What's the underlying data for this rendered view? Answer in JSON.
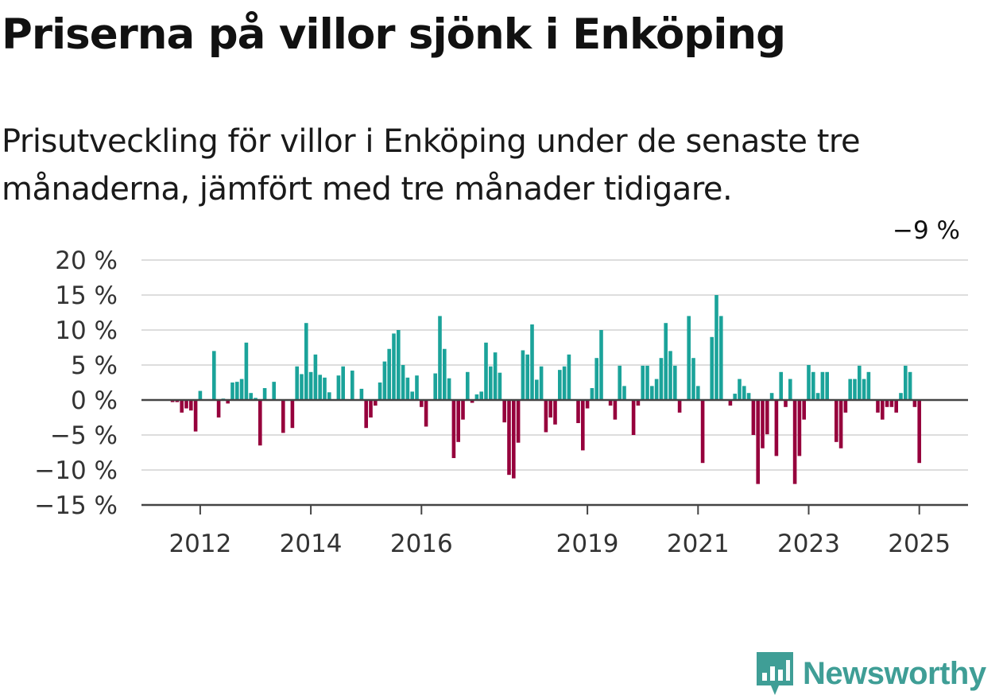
{
  "title": "Priserna på villor sjönk i Enköping",
  "subtitle": "Prisutveckling för villor i Enköping under de senaste tre månaderna, jämfört med tre månader tidigare.",
  "brand": {
    "name": "Newsworthy",
    "color": "#3f9e96",
    "icon": "newsworthy-chart-icon"
  },
  "colors": {
    "positive": "#1ba39a",
    "negative": "#96003c",
    "grid": "#dddddd",
    "axis": "#444444"
  },
  "chart_data": {
    "type": "bar",
    "ylim": [
      -15,
      20
    ],
    "yticks": [
      20,
      15,
      10,
      5,
      0,
      -5,
      -10,
      -15
    ],
    "ytick_labels": [
      "20 %",
      "15 %",
      "10 %",
      "5 %",
      "0 %",
      "−5 %",
      "−10 %",
      "−15 %"
    ],
    "x_start": "2011-01",
    "xticks": [
      {
        "label": "2012",
        "year": 2012
      },
      {
        "label": "2014",
        "year": 2014
      },
      {
        "label": "2016",
        "year": 2016
      },
      {
        "label": "2019",
        "year": 2019
      },
      {
        "label": "2021",
        "year": 2021
      },
      {
        "label": "2023",
        "year": 2023
      },
      {
        "label": "2025",
        "year": 2025
      }
    ],
    "values": [
      null,
      null,
      null,
      null,
      null,
      null,
      null,
      null,
      null,
      null,
      null,
      null,
      -0.3,
      -0.3,
      -1.8,
      -1.2,
      -1.5,
      -4.5,
      1.3,
      0,
      0,
      7,
      -2.5,
      0.2,
      -0.5,
      2.5,
      2.6,
      3,
      8.2,
      1,
      0.3,
      -6.5,
      1.7,
      0,
      2.6,
      0,
      -4.7,
      0,
      -4,
      4.8,
      3.7,
      11,
      4,
      6.5,
      3.6,
      3.2,
      1.1,
      0,
      3.5,
      4.8,
      0,
      4.2,
      0,
      1.6,
      -4,
      -2.5,
      -0.8,
      2.5,
      5.5,
      7.3,
      9.5,
      10,
      5,
      3.2,
      1.2,
      3.5,
      -1,
      -3.8,
      0,
      3.8,
      12,
      7.3,
      3.1,
      -8.3,
      -6,
      -2.8,
      4,
      -0.4,
      0.8,
      1.2,
      8.2,
      4.8,
      6.8,
      3.9,
      -3.2,
      -10.7,
      -11.2,
      -6.1,
      7.1,
      6.5,
      10.8,
      2.9,
      4.8,
      -4.6,
      -2.5,
      -3.5,
      4.3,
      4.8,
      6.5,
      0,
      -3.3,
      -7.2,
      -1.2,
      1.7,
      6,
      10,
      0,
      -0.8,
      -2.8,
      4.9,
      2,
      0,
      -5,
      -0.8,
      4.9,
      4.9,
      2,
      3,
      6,
      11,
      7,
      4.9,
      -1.8,
      0,
      12,
      6,
      2,
      -9,
      0,
      9,
      15,
      12,
      0,
      -0.8,
      0.9,
      3,
      2,
      1,
      -5,
      -12,
      -6.9,
      -4.9,
      1,
      -8,
      4,
      -1,
      3,
      -12,
      -8,
      -2.8,
      5,
      4,
      1,
      4,
      4,
      0,
      -6,
      -6.9,
      -1.8,
      3,
      3,
      4.9,
      3,
      4,
      0,
      -1.8,
      -2.8,
      -1,
      -1,
      -1.8,
      1,
      4.9,
      4,
      -1,
      -9
    ],
    "data_labels": [
      {
        "text": "−9 %",
        "index": 190
      }
    ]
  }
}
